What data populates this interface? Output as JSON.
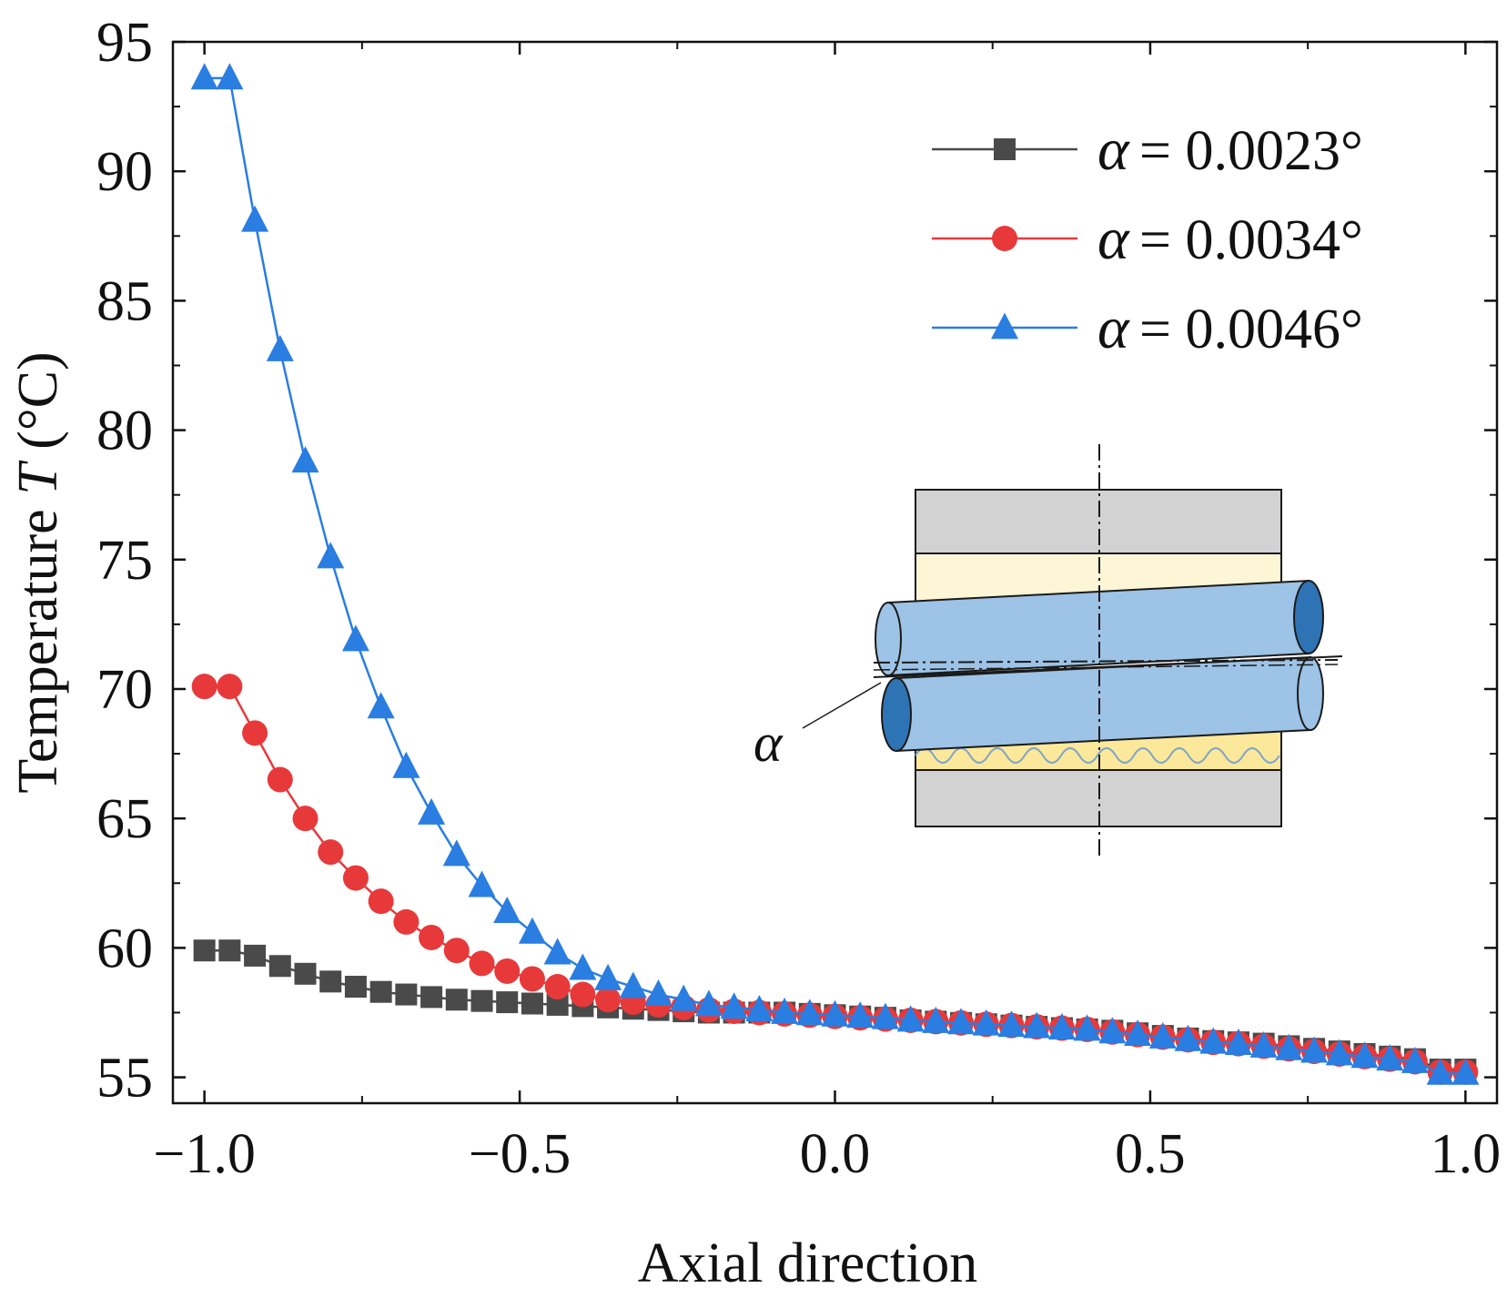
{
  "chart_data": {
    "type": "line",
    "title": "",
    "xlabel": "Axial direction",
    "ylabel": "Temperature",
    "ylabel_symbol": "T",
    "ylabel_unit": "(°C)",
    "xlim": [
      -1.05,
      1.05
    ],
    "ylim": [
      54.0,
      95.0
    ],
    "xticks": [
      -1.0,
      -0.5,
      0.0,
      0.5,
      1.0
    ],
    "xtick_labels": [
      "−1.0",
      "−0.5",
      "0.0",
      "0.5",
      "1.0"
    ],
    "yticks": [
      55,
      60,
      65,
      70,
      75,
      80,
      85,
      90,
      95
    ],
    "ytick_labels": [
      "55",
      "60",
      "65",
      "70",
      "75",
      "80",
      "85",
      "90",
      "95"
    ],
    "grid": false,
    "legend_position": "top-right",
    "x": [
      -1.0,
      -0.96,
      -0.92,
      -0.88,
      -0.84,
      -0.8,
      -0.76,
      -0.72,
      -0.68,
      -0.64,
      -0.6,
      -0.56,
      -0.52,
      -0.48,
      -0.44,
      -0.4,
      -0.36,
      -0.32,
      -0.28,
      -0.24,
      -0.2,
      -0.16,
      -0.12,
      -0.08,
      -0.04,
      0.0,
      0.04,
      0.08,
      0.12,
      0.16,
      0.2,
      0.24,
      0.28,
      0.32,
      0.36,
      0.4,
      0.44,
      0.48,
      0.52,
      0.56,
      0.6,
      0.64,
      0.68,
      0.72,
      0.76,
      0.8,
      0.84,
      0.88,
      0.92,
      0.96,
      1.0
    ],
    "series": [
      {
        "name": "α = 0.0023°",
        "alpha_symbol": "α",
        "value_label": "= 0.0023°",
        "color": "#4a4a4a",
        "marker": "square",
        "values": [
          59.9,
          59.9,
          59.7,
          59.3,
          59.0,
          58.7,
          58.5,
          58.3,
          58.2,
          58.1,
          58.0,
          57.95,
          57.9,
          57.85,
          57.8,
          57.75,
          57.7,
          57.65,
          57.6,
          57.55,
          57.5,
          57.5,
          57.5,
          57.5,
          57.45,
          57.4,
          57.35,
          57.3,
          57.2,
          57.15,
          57.1,
          57.05,
          57.0,
          56.95,
          56.9,
          56.85,
          56.8,
          56.7,
          56.6,
          56.5,
          56.4,
          56.35,
          56.3,
          56.2,
          56.1,
          56.0,
          55.9,
          55.8,
          55.7,
          55.3,
          55.3
        ]
      },
      {
        "name": "α = 0.0034°",
        "alpha_symbol": "α",
        "value_label": "= 0.0034°",
        "color": "#e8393a",
        "marker": "circle",
        "values": [
          70.1,
          70.1,
          68.3,
          66.5,
          65.0,
          63.7,
          62.7,
          61.8,
          61.0,
          60.4,
          59.9,
          59.4,
          59.1,
          58.8,
          58.5,
          58.2,
          58.0,
          57.9,
          57.8,
          57.7,
          57.6,
          57.55,
          57.5,
          57.45,
          57.4,
          57.35,
          57.3,
          57.25,
          57.2,
          57.15,
          57.1,
          57.05,
          57.0,
          56.95,
          56.9,
          56.85,
          56.75,
          56.65,
          56.55,
          56.45,
          56.35,
          56.3,
          56.2,
          56.1,
          56.0,
          55.9,
          55.8,
          55.7,
          55.6,
          55.2,
          55.2
        ]
      },
      {
        "name": "α = 0.0046°",
        "alpha_symbol": "α",
        "value_label": "= 0.0046°",
        "color": "#2a7de1",
        "marker": "triangle",
        "values": [
          93.6,
          93.6,
          88.1,
          83.1,
          78.8,
          75.1,
          71.9,
          69.3,
          67.0,
          65.2,
          63.6,
          62.4,
          61.4,
          60.6,
          59.8,
          59.2,
          58.8,
          58.5,
          58.2,
          58.0,
          57.8,
          57.7,
          57.6,
          57.5,
          57.45,
          57.4,
          57.35,
          57.3,
          57.2,
          57.15,
          57.1,
          57.05,
          57.0,
          56.95,
          56.9,
          56.85,
          56.75,
          56.65,
          56.55,
          56.45,
          56.35,
          56.3,
          56.2,
          56.1,
          56.0,
          55.9,
          55.8,
          55.7,
          55.6,
          55.15,
          55.15
        ]
      }
    ],
    "inset": {
      "description_symbol": "α",
      "colors": {
        "housing": "#d2d2d2",
        "upper_film": "#fdf6d6",
        "lower_film": "#fbe89a",
        "shaft": "#9dc3e6",
        "shaft_end": "#2e74b5",
        "outline": "#1a1a1a"
      }
    }
  }
}
